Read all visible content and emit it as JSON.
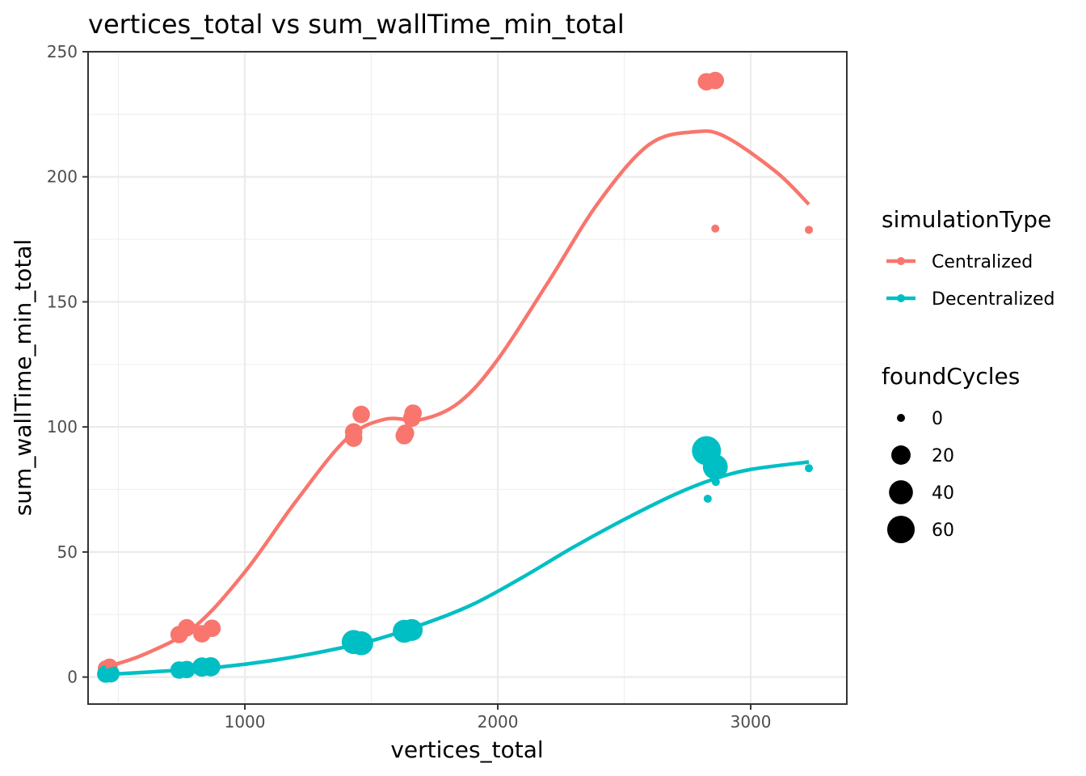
{
  "chart_data": {
    "type": "scatter",
    "title": "vertices_total  vs  sum_wallTime_min_total",
    "xlabel": "vertices_total",
    "ylabel": "sum_wallTime_min_total",
    "xlim": [
      380,
      3380
    ],
    "ylim": [
      -10.8,
      250
    ],
    "x_ticks": [
      1000,
      2000,
      3000
    ],
    "x_tick_labels": [
      "1000",
      "2000",
      "3000"
    ],
    "y_ticks": [
      0,
      50,
      100,
      150,
      200,
      250
    ],
    "y_tick_labels": [
      "0",
      "50",
      "100",
      "150",
      "200",
      "250"
    ],
    "grid": true,
    "legend_position": "right",
    "colors": {
      "Centralized": "#F8766D",
      "Decentralized": "#00BFC4"
    },
    "color_legend": {
      "title": "simulationType",
      "entries": [
        "Centralized",
        "Decentralized"
      ]
    },
    "size_legend": {
      "title": "foundCycles",
      "values": [
        0,
        20,
        40,
        60
      ],
      "labels": [
        "0",
        "20",
        "40",
        "60"
      ]
    },
    "series": [
      {
        "name": "Centralized",
        "points": [
          {
            "x": 450,
            "y": 3.5,
            "size": 10
          },
          {
            "x": 465,
            "y": 4.2,
            "size": 10
          },
          {
            "x": 740,
            "y": 17,
            "size": 14
          },
          {
            "x": 770,
            "y": 19.7,
            "size": 14
          },
          {
            "x": 830,
            "y": 17.3,
            "size": 14
          },
          {
            "x": 870,
            "y": 19.5,
            "size": 14
          },
          {
            "x": 1430,
            "y": 95.5,
            "size": 14
          },
          {
            "x": 1430,
            "y": 98,
            "size": 14
          },
          {
            "x": 1460,
            "y": 105,
            "size": 14
          },
          {
            "x": 1630,
            "y": 96.5,
            "size": 14
          },
          {
            "x": 1635,
            "y": 97.5,
            "size": 14
          },
          {
            "x": 1660,
            "y": 103.5,
            "size": 14
          },
          {
            "x": 1665,
            "y": 105.5,
            "size": 14
          },
          {
            "x": 2825,
            "y": 238,
            "size": 14
          },
          {
            "x": 2860,
            "y": 238.5,
            "size": 14
          },
          {
            "x": 2860,
            "y": 179.3,
            "size": 0
          },
          {
            "x": 3230,
            "y": 178.8,
            "size": 0
          }
        ],
        "smooth": [
          [
            450,
            4
          ],
          [
            600,
            9
          ],
          [
            800,
            20
          ],
          [
            1000,
            42
          ],
          [
            1200,
            70
          ],
          [
            1400,
            95
          ],
          [
            1550,
            103
          ],
          [
            1700,
            103
          ],
          [
            1850,
            110
          ],
          [
            2000,
            127
          ],
          [
            2200,
            158
          ],
          [
            2400,
            190
          ],
          [
            2600,
            213
          ],
          [
            2780,
            218
          ],
          [
            2900,
            216
          ],
          [
            3100,
            202
          ],
          [
            3230,
            189
          ]
        ]
      },
      {
        "name": "Decentralized",
        "points": [
          {
            "x": 450,
            "y": 1.2,
            "size": 14
          },
          {
            "x": 470,
            "y": 1.3,
            "size": 14
          },
          {
            "x": 740,
            "y": 2.8,
            "size": 14
          },
          {
            "x": 770,
            "y": 3,
            "size": 14
          },
          {
            "x": 830,
            "y": 4,
            "size": 20
          },
          {
            "x": 865,
            "y": 4.1,
            "size": 20
          },
          {
            "x": 1430,
            "y": 14,
            "size": 40
          },
          {
            "x": 1460,
            "y": 13.5,
            "size": 40
          },
          {
            "x": 1630,
            "y": 18.3,
            "size": 35
          },
          {
            "x": 1660,
            "y": 18.8,
            "size": 30
          },
          {
            "x": 2825,
            "y": 90.5,
            "size": 70
          },
          {
            "x": 2860,
            "y": 84,
            "size": 45
          },
          {
            "x": 2830,
            "y": 71.3,
            "size": 0
          },
          {
            "x": 2862,
            "y": 78,
            "size": 0
          },
          {
            "x": 3230,
            "y": 83.5,
            "size": 0
          }
        ],
        "smooth": [
          [
            450,
            1
          ],
          [
            700,
            2.5
          ],
          [
            900,
            4
          ],
          [
            1100,
            6.5
          ],
          [
            1300,
            10
          ],
          [
            1500,
            14.5
          ],
          [
            1700,
            21
          ],
          [
            1900,
            29
          ],
          [
            2100,
            40
          ],
          [
            2300,
            52
          ],
          [
            2500,
            63
          ],
          [
            2700,
            73
          ],
          [
            2850,
            79
          ],
          [
            3000,
            83
          ],
          [
            3230,
            86
          ]
        ]
      }
    ]
  }
}
